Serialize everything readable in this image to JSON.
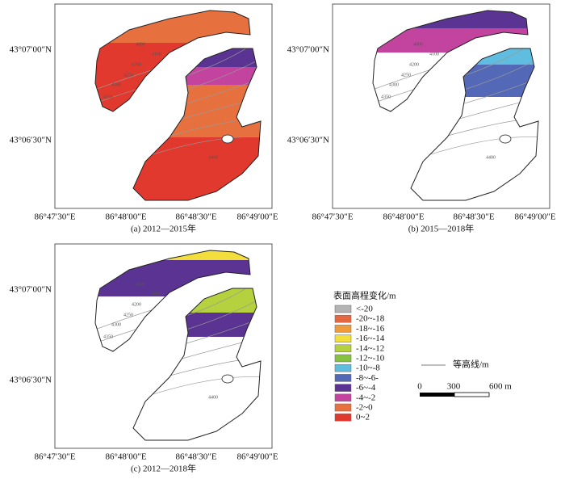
{
  "panels": [
    {
      "caption": "(a) 2012—2015年",
      "x_labels": [
        "86°47′30″E",
        "86°48′00″E",
        "86°48′30″E",
        "86°49′00″E"
      ],
      "y_labels": [
        "43°07′00″N",
        "43°06′30″N"
      ],
      "contour_labels": [
        "4000",
        "4100",
        "4200",
        "4250",
        "4300",
        "4350",
        "4400"
      ]
    },
    {
      "caption": "(b) 2015—2018年",
      "x_labels": [
        "86°47′30″E",
        "86°48′00″E",
        "86°48′30″E",
        "86°49′00″E"
      ],
      "y_labels": [
        "43°07′00″N",
        "43°06′30″N"
      ],
      "contour_labels": [
        "4000",
        "4100",
        "4200",
        "4250",
        "4300",
        "4350",
        "4400"
      ]
    },
    {
      "caption": "(c) 2012—2018年",
      "x_labels": [
        "86°47′30″E",
        "86°48′00″E",
        "86°48′30″E",
        "86°49′00″E"
      ],
      "y_labels": [
        "43°07′00″N",
        "43°06′30″N"
      ],
      "contour_labels": [
        "4000",
        "4100",
        "4200",
        "4250",
        "4300",
        "4350",
        "4400"
      ]
    }
  ],
  "legend": {
    "title": "表面高程变化/m",
    "items": [
      {
        "label": "<-20",
        "color": "#b3b3b3"
      },
      {
        "label": "-20~-18",
        "color": "#e5673f"
      },
      {
        "label": "-18~-16",
        "color": "#f09a3e"
      },
      {
        "label": "-16~-14",
        "color": "#f2df3c"
      },
      {
        "label": "-14~-12",
        "color": "#b5d13e"
      },
      {
        "label": "-12~-10",
        "color": "#84c23f"
      },
      {
        "label": "-10~-8",
        "color": "#5fbde0"
      },
      {
        "label": "-8~-6-",
        "color": "#5468b8"
      },
      {
        "label": "-6~-4",
        "color": "#5b3392"
      },
      {
        "label": "-4~-2",
        "color": "#c2449e"
      },
      {
        "label": "-2~0",
        "color": "#e7703f"
      },
      {
        "label": "0~2",
        "color": "#e2392f"
      }
    ]
  },
  "contour_legend": "等高线/m",
  "scale_bar": {
    "labels": [
      "0",
      "300",
      "600 m"
    ]
  }
}
